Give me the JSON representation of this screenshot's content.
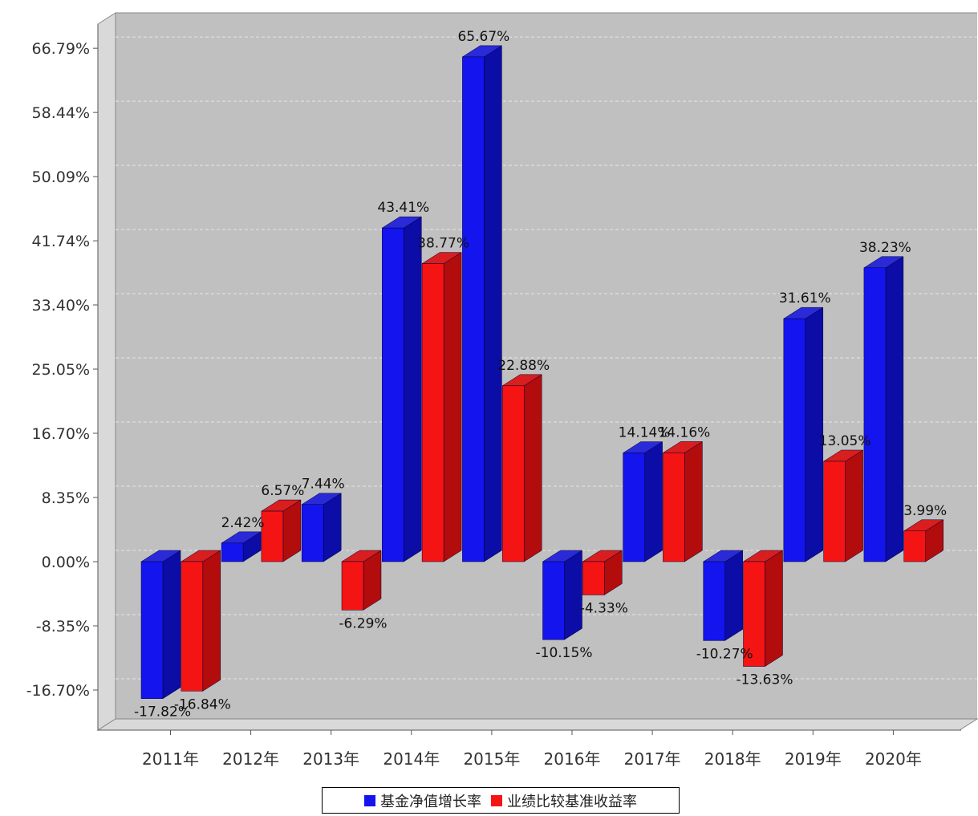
{
  "chart_data": {
    "type": "bar",
    "categories": [
      "2011年",
      "2012年",
      "2013年",
      "2014年",
      "2015年",
      "2016年",
      "2017年",
      "2018年",
      "2019年",
      "2020年"
    ],
    "series": [
      {
        "name": "基金净值增长率",
        "values": [
          -17.82,
          2.42,
          7.44,
          43.41,
          65.67,
          -10.15,
          14.14,
          -10.27,
          31.61,
          38.23
        ]
      },
      {
        "name": "业绩比较基准收益率",
        "values": [
          -16.84,
          6.57,
          -6.29,
          38.77,
          22.88,
          -4.33,
          14.16,
          -13.63,
          13.05,
          3.99
        ]
      }
    ],
    "value_labels": {
      "s0": [
        "-17.82%",
        "2.42%",
        "7.44%",
        "43.41%",
        "65.67%",
        "-10.15%",
        "14.14%",
        "-10.27%",
        "31.61%",
        "38.23%"
      ],
      "s1": [
        "-16.84%",
        "6.57%",
        "-6.29%",
        "38.77%",
        "22.88%",
        "-4.33%",
        "14.16%",
        "-13.63%",
        "13.05%",
        "3.99%"
      ]
    },
    "y_ticks": [
      "66.79%",
      "58.44%",
      "50.09%",
      "41.74%",
      "33.40%",
      "25.05%",
      "16.70%",
      "8.35%",
      "0.00%",
      "-8.35%",
      "-16.70%"
    ],
    "y_tick_values": [
      66.79,
      58.44,
      50.09,
      41.74,
      33.4,
      25.05,
      16.7,
      8.35,
      0.0,
      -8.35,
      -16.7
    ],
    "ylim": [
      -20.9,
      70.9
    ],
    "grid": true,
    "legend_position": "bottom-center",
    "colors": {
      "series0": "#1414ee",
      "series0_side": "#0c0ca6",
      "series0_top": "#2a2ad8",
      "series1": "#f51414",
      "series1_side": "#b30c0c",
      "series1_top": "#d81e1e",
      "plot_bg": "#c0c0c0",
      "wall": "#d9d9d9",
      "gridline": "#e6e6e6"
    }
  },
  "legend": {
    "items": [
      {
        "label": "基金净值增长率",
        "color": "#1414ee"
      },
      {
        "label": "业绩比较基准收益率",
        "color": "#f51414"
      }
    ]
  }
}
